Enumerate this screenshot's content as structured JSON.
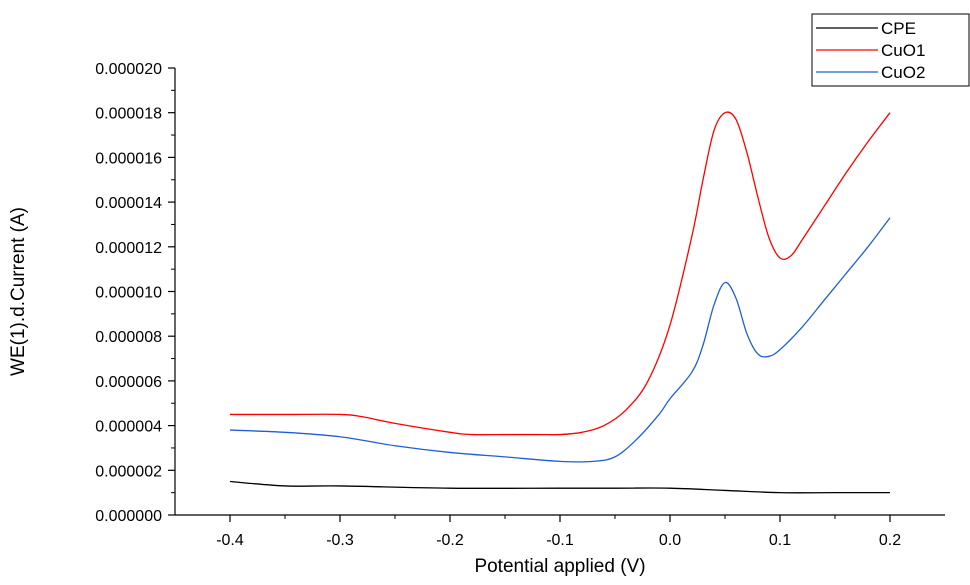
{
  "chart_data": {
    "type": "line",
    "title": "",
    "xlabel": "Potential applied (V)",
    "ylabel": "WE(1).d.Current (A)",
    "xlim": [
      -0.45,
      0.25
    ],
    "ylim": [
      0,
      2e-05
    ],
    "x_ticks": [
      -0.4,
      -0.3,
      -0.2,
      -0.1,
      0.0,
      0.1,
      0.2
    ],
    "x_tick_labels": [
      "-0.4",
      "-0.3",
      "-0.2",
      "-0.1",
      "0.0",
      "0.1",
      "0.2"
    ],
    "y_ticks": [
      0,
      2e-06,
      4e-06,
      6e-06,
      8e-06,
      1e-05,
      1.2e-05,
      1.4e-05,
      1.6e-05,
      1.8e-05,
      2e-05
    ],
    "y_tick_labels": [
      "0.000000",
      "0.000002",
      "0.000004",
      "0.000006",
      "0.000008",
      "0.000010",
      "0.000012",
      "0.000014",
      "0.000016",
      "0.000018",
      "0.000020"
    ],
    "grid": false,
    "legend_position": "top-right",
    "series": [
      {
        "name": "CPE",
        "color": "#000000",
        "x": [
          -0.4,
          -0.35,
          -0.3,
          -0.2,
          -0.1,
          -0.05,
          0.0,
          0.05,
          0.1,
          0.15,
          0.2
        ],
        "y": [
          1.5e-06,
          1.3e-06,
          1.3e-06,
          1.2e-06,
          1.2e-06,
          1.2e-06,
          1.2e-06,
          1.1e-06,
          1e-06,
          1e-06,
          1e-06
        ]
      },
      {
        "name": "CuO1",
        "color": "#ff0000",
        "x": [
          -0.4,
          -0.35,
          -0.3,
          -0.28,
          -0.25,
          -0.2,
          -0.18,
          -0.15,
          -0.12,
          -0.1,
          -0.08,
          -0.06,
          -0.04,
          -0.02,
          0.0,
          0.02,
          0.03,
          0.04,
          0.05,
          0.06,
          0.07,
          0.08,
          0.09,
          0.1,
          0.11,
          0.12,
          0.14,
          0.16,
          0.18,
          0.2
        ],
        "y": [
          4.5e-06,
          4.5e-06,
          4.5e-06,
          4.4e-06,
          4.1e-06,
          3.7e-06,
          3.6e-06,
          3.6e-06,
          3.6e-06,
          3.6e-06,
          3.7e-06,
          4e-06,
          4.7e-06,
          6e-06,
          8.5e-06,
          1.25e-05,
          1.5e-05,
          1.72e-05,
          1.8e-05,
          1.77e-05,
          1.62e-05,
          1.42e-05,
          1.24e-05,
          1.15e-05,
          1.16e-05,
          1.23e-05,
          1.38e-05,
          1.53e-05,
          1.67e-05,
          1.8e-05
        ]
      },
      {
        "name": "CuO2",
        "color": "#1f5fd6",
        "x": [
          -0.4,
          -0.35,
          -0.3,
          -0.25,
          -0.2,
          -0.15,
          -0.1,
          -0.07,
          -0.05,
          -0.03,
          -0.01,
          0.0,
          0.02,
          0.03,
          0.04,
          0.05,
          0.06,
          0.07,
          0.08,
          0.09,
          0.1,
          0.12,
          0.14,
          0.16,
          0.18,
          0.2
        ],
        "y": [
          3.8e-06,
          3.7e-06,
          3.5e-06,
          3.1e-06,
          2.8e-06,
          2.6e-06,
          2.4e-06,
          2.4e-06,
          2.6e-06,
          3.4e-06,
          4.5e-06,
          5.2e-06,
          6.4e-06,
          7.6e-06,
          9.4e-06,
          1.04e-05,
          9.7e-06,
          8.1e-06,
          7.2e-06,
          7.1e-06,
          7.4e-06,
          8.4e-06,
          9.6e-06,
          1.08e-05,
          1.2e-05,
          1.33e-05
        ]
      }
    ]
  }
}
